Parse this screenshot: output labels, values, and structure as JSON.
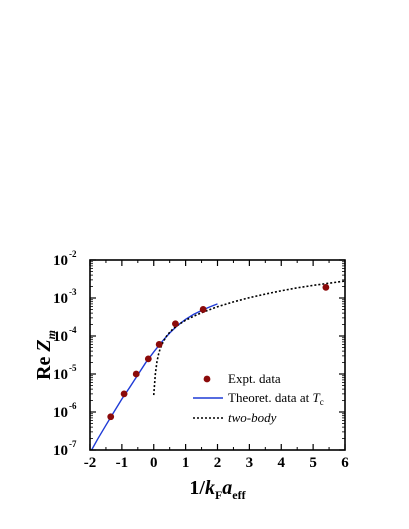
{
  "chart_data": {
    "type": "line",
    "xlabel": {
      "parts": [
        "1/",
        "k",
        "F",
        "a",
        "eff"
      ]
    },
    "ylabel": {
      "parts": [
        "Re ",
        "Z",
        "m"
      ]
    },
    "xlim": [
      -2,
      6
    ],
    "ylim_log10": [
      -7,
      -2
    ],
    "y_scale": "log",
    "x_ticks": [
      -2,
      -1,
      0,
      1,
      2,
      3,
      4,
      5,
      6
    ],
    "x_tick_labels": [
      "-2",
      "-1",
      "0",
      "1",
      "2",
      "3",
      "4",
      "5",
      "6"
    ],
    "y_tick_labels": [
      {
        "base": "10",
        "exp": "-7",
        "value": 1e-07
      },
      {
        "base": "10",
        "exp": "-6",
        "value": 1e-06
      },
      {
        "base": "10",
        "exp": "-5",
        "value": 1e-05
      },
      {
        "base": "10",
        "exp": "-4",
        "value": 0.0001
      },
      {
        "base": "10",
        "exp": "-3",
        "value": 0.001
      },
      {
        "base": "10",
        "exp": "-2",
        "value": 0.01
      }
    ],
    "legend_position": "lower-right",
    "legend": [
      {
        "key": "expt",
        "parts": [
          "Expt. data"
        ]
      },
      {
        "key": "theory",
        "parts": [
          "Theoret. data at ",
          "T",
          "c"
        ]
      },
      {
        "key": "twobody",
        "parts": [
          "two-body"
        ]
      }
    ],
    "series": [
      {
        "key": "expt",
        "style": "markers",
        "color": "#8b0a0a",
        "x": [
          -1.35,
          -0.93,
          -0.55,
          -0.17,
          0.17,
          0.68,
          1.55,
          5.4
        ],
        "y": [
          7.5e-07,
          3e-06,
          1e-05,
          2.5e-05,
          6e-05,
          0.00021,
          0.0005,
          0.0019
        ]
      },
      {
        "key": "theory",
        "style": "solid",
        "color": "#1f3bd6",
        "x": [
          -1.95,
          -1.75,
          -1.5,
          -1.25,
          -1.0,
          -0.75,
          -0.5,
          -0.25,
          0.0,
          0.25,
          0.5,
          0.75,
          1.0,
          1.25,
          1.5,
          1.75,
          2.0
        ],
        "y": [
          1e-07,
          2e-07,
          4.5e-07,
          1e-06,
          2.2e-06,
          4.5e-06,
          9.5e-06,
          2e-05,
          3.8e-05,
          7e-05,
          0.00012,
          0.00019,
          0.000275,
          0.00037,
          0.00047,
          0.00058,
          0.0007
        ]
      },
      {
        "key": "twobody",
        "style": "dotted",
        "color": "#000000",
        "x": [
          0.0,
          0.05,
          0.1,
          0.15,
          0.2,
          0.3,
          0.4,
          0.5,
          0.6,
          0.8,
          1.0,
          1.25,
          1.5,
          2.0,
          2.5,
          3.0,
          3.5,
          4.0,
          4.5,
          5.0,
          5.5,
          6.0
        ],
        "y": [
          2.8e-06,
          1e-05,
          2.1e-05,
          3.3e-05,
          4.6e-05,
          7.2e-05,
          9.9e-05,
          0.000125,
          0.000152,
          0.000205,
          0.00026,
          0.00033,
          0.00041,
          0.00059,
          0.00079,
          0.00102,
          0.00127,
          0.00155,
          0.00185,
          0.00215,
          0.00245,
          0.0028
        ]
      }
    ]
  }
}
